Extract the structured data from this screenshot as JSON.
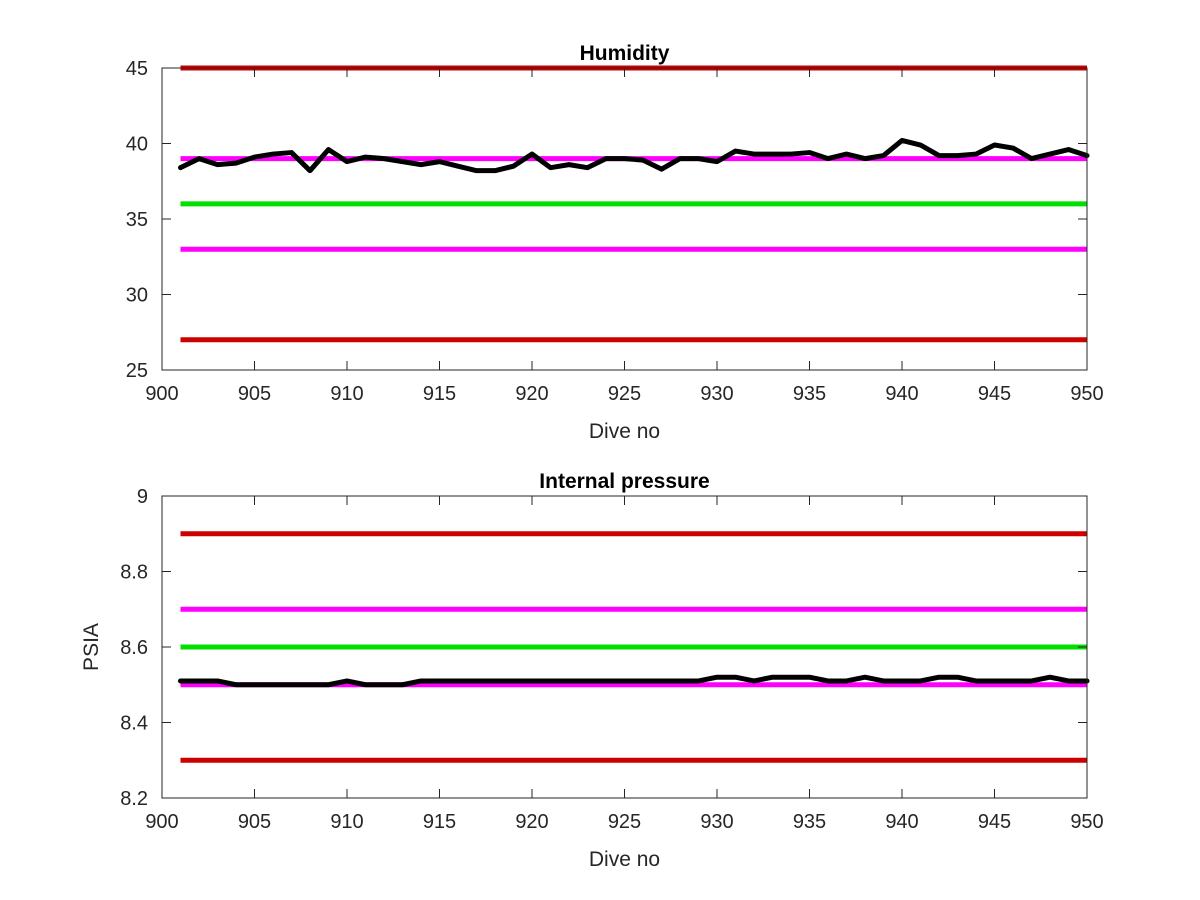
{
  "chart_data": [
    {
      "type": "line",
      "title": "Humidity",
      "xlabel": "Dive no",
      "ylabel": "",
      "xlim": [
        900,
        950
      ],
      "ylim": [
        25,
        45
      ],
      "xticks": [
        900,
        905,
        910,
        915,
        920,
        925,
        930,
        935,
        940,
        945,
        950
      ],
      "yticks": [
        25,
        30,
        35,
        40,
        45
      ],
      "ytick_labels": [
        "25",
        "30",
        "35",
        "40",
        "45"
      ],
      "grid": false,
      "limits": [
        {
          "value": 45,
          "color": "#cc0000"
        },
        {
          "value": 39,
          "color": "#ff00ff"
        },
        {
          "value": 36,
          "color": "#00e000"
        },
        {
          "value": 33,
          "color": "#ff00ff"
        },
        {
          "value": 27,
          "color": "#cc0000"
        }
      ],
      "series": [
        {
          "color": "#000000",
          "x": [
            901,
            902,
            903,
            904,
            905,
            906,
            907,
            908,
            909,
            910,
            911,
            912,
            913,
            914,
            915,
            916,
            917,
            918,
            919,
            920,
            921,
            922,
            923,
            924,
            925,
            926,
            927,
            928,
            929,
            930,
            931,
            932,
            933,
            934,
            935,
            936,
            937,
            938,
            939,
            940,
            941,
            942,
            943,
            944,
            945,
            946,
            947,
            948,
            949,
            950
          ],
          "y": [
            38.4,
            39.0,
            38.6,
            38.7,
            39.1,
            39.3,
            39.4,
            38.2,
            39.6,
            38.8,
            39.1,
            39.0,
            38.8,
            38.6,
            38.8,
            38.5,
            38.2,
            38.2,
            38.5,
            39.3,
            38.4,
            38.6,
            38.4,
            39.0,
            39.0,
            38.9,
            38.3,
            39.0,
            39.0,
            38.8,
            39.5,
            39.3,
            39.3,
            39.3,
            39.4,
            39.0,
            39.3,
            39.0,
            39.2,
            40.2,
            39.9,
            39.2,
            39.2,
            39.3,
            39.9,
            39.7,
            39.0,
            39.3,
            39.6,
            39.2
          ]
        }
      ]
    },
    {
      "type": "line",
      "title": "Internal pressure",
      "xlabel": "Dive no",
      "ylabel": "PSIA",
      "xlim": [
        900,
        950
      ],
      "ylim": [
        8.2,
        9.0
      ],
      "xticks": [
        900,
        905,
        910,
        915,
        920,
        925,
        930,
        935,
        940,
        945,
        950
      ],
      "yticks": [
        8.2,
        8.4,
        8.6,
        8.8,
        9.0
      ],
      "ytick_labels": [
        "8.2",
        "8.4",
        "8.6",
        "8.8",
        "9"
      ],
      "grid": false,
      "limits": [
        {
          "value": 8.9,
          "color": "#cc0000"
        },
        {
          "value": 8.7,
          "color": "#ff00ff"
        },
        {
          "value": 8.6,
          "color": "#00e000"
        },
        {
          "value": 8.5,
          "color": "#ff00ff"
        },
        {
          "value": 8.3,
          "color": "#cc0000"
        }
      ],
      "series": [
        {
          "color": "#000000",
          "x": [
            901,
            902,
            903,
            904,
            905,
            906,
            907,
            908,
            909,
            910,
            911,
            912,
            913,
            914,
            915,
            916,
            917,
            918,
            919,
            920,
            921,
            922,
            923,
            924,
            925,
            926,
            927,
            928,
            929,
            930,
            931,
            932,
            933,
            934,
            935,
            936,
            937,
            938,
            939,
            940,
            941,
            942,
            943,
            944,
            945,
            946,
            947,
            948,
            949,
            950
          ],
          "y": [
            8.51,
            8.51,
            8.51,
            8.5,
            8.5,
            8.5,
            8.5,
            8.5,
            8.5,
            8.51,
            8.5,
            8.5,
            8.5,
            8.51,
            8.51,
            8.51,
            8.51,
            8.51,
            8.51,
            8.51,
            8.51,
            8.51,
            8.51,
            8.51,
            8.51,
            8.51,
            8.51,
            8.51,
            8.51,
            8.52,
            8.52,
            8.51,
            8.52,
            8.52,
            8.52,
            8.51,
            8.51,
            8.52,
            8.51,
            8.51,
            8.51,
            8.52,
            8.52,
            8.51,
            8.51,
            8.51,
            8.51,
            8.52,
            8.51,
            8.51
          ]
        }
      ]
    }
  ]
}
